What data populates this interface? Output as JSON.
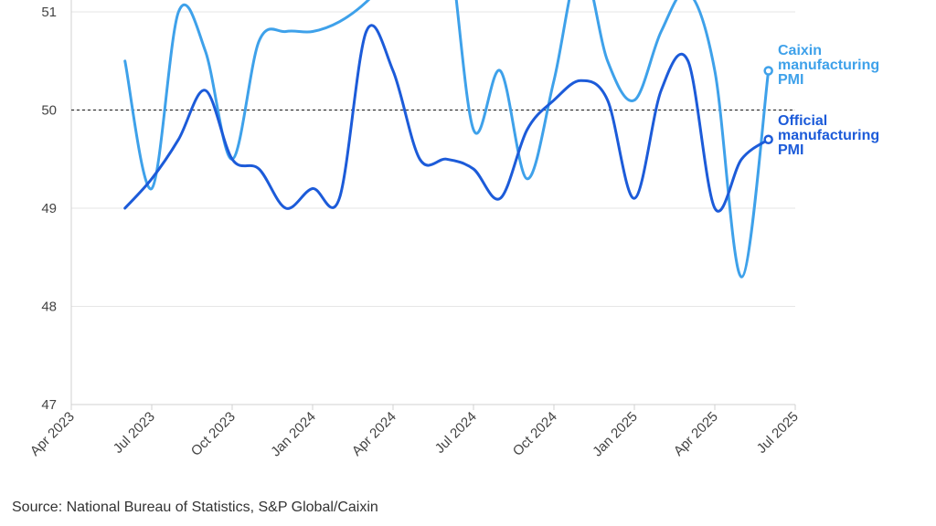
{
  "source": "Source: National Bureau of Statistics, S&P Global/Caixin",
  "chart_data": {
    "type": "line",
    "title": "",
    "xlabel": "",
    "ylabel": "",
    "ylim": [
      47,
      51.5
    ],
    "yticks": [
      47,
      48,
      49,
      50,
      51
    ],
    "reference_line": 50,
    "grid": true,
    "xticks": [
      "Apr 2023",
      "Jul 2023",
      "Oct 2023",
      "Jan 2024",
      "Apr 2024",
      "Jul 2024",
      "Oct 2024",
      "Jan 2025",
      "Apr 2025",
      "Jul 2025"
    ],
    "x": [
      "2023-06",
      "2023-07",
      "2023-08",
      "2023-09",
      "2023-10",
      "2023-11",
      "2023-12",
      "2024-01",
      "2024-02",
      "2024-03",
      "2024-04",
      "2024-05",
      "2024-06",
      "2024-07",
      "2024-08",
      "2024-09",
      "2024-10",
      "2024-11",
      "2024-12",
      "2025-01",
      "2025-02",
      "2025-03",
      "2025-04",
      "2025-05",
      "2025-06"
    ],
    "series": [
      {
        "name": "Caixin manufacturing PMI",
        "label_lines": [
          "Caixin",
          "manufacturing",
          "PMI"
        ],
        "color": "#3ea1ea",
        "values": [
          50.5,
          49.2,
          51.0,
          50.6,
          49.5,
          50.7,
          50.8,
          50.8,
          50.9,
          51.1,
          51.4,
          51.7,
          51.8,
          49.8,
          50.4,
          49.3,
          50.3,
          51.5,
          50.5,
          50.1,
          50.8,
          51.2,
          50.4,
          48.3,
          50.4
        ]
      },
      {
        "name": "Official manufacturing PMI",
        "label_lines": [
          "Official",
          "manufacturing",
          "PMI"
        ],
        "color": "#1c5bd9",
        "values": [
          49.0,
          49.3,
          49.7,
          50.2,
          49.5,
          49.4,
          49.0,
          49.2,
          49.1,
          50.8,
          50.4,
          49.5,
          49.5,
          49.4,
          49.1,
          49.8,
          50.1,
          50.3,
          50.1,
          49.1,
          50.2,
          50.5,
          49.0,
          49.5,
          49.7
        ]
      }
    ]
  }
}
